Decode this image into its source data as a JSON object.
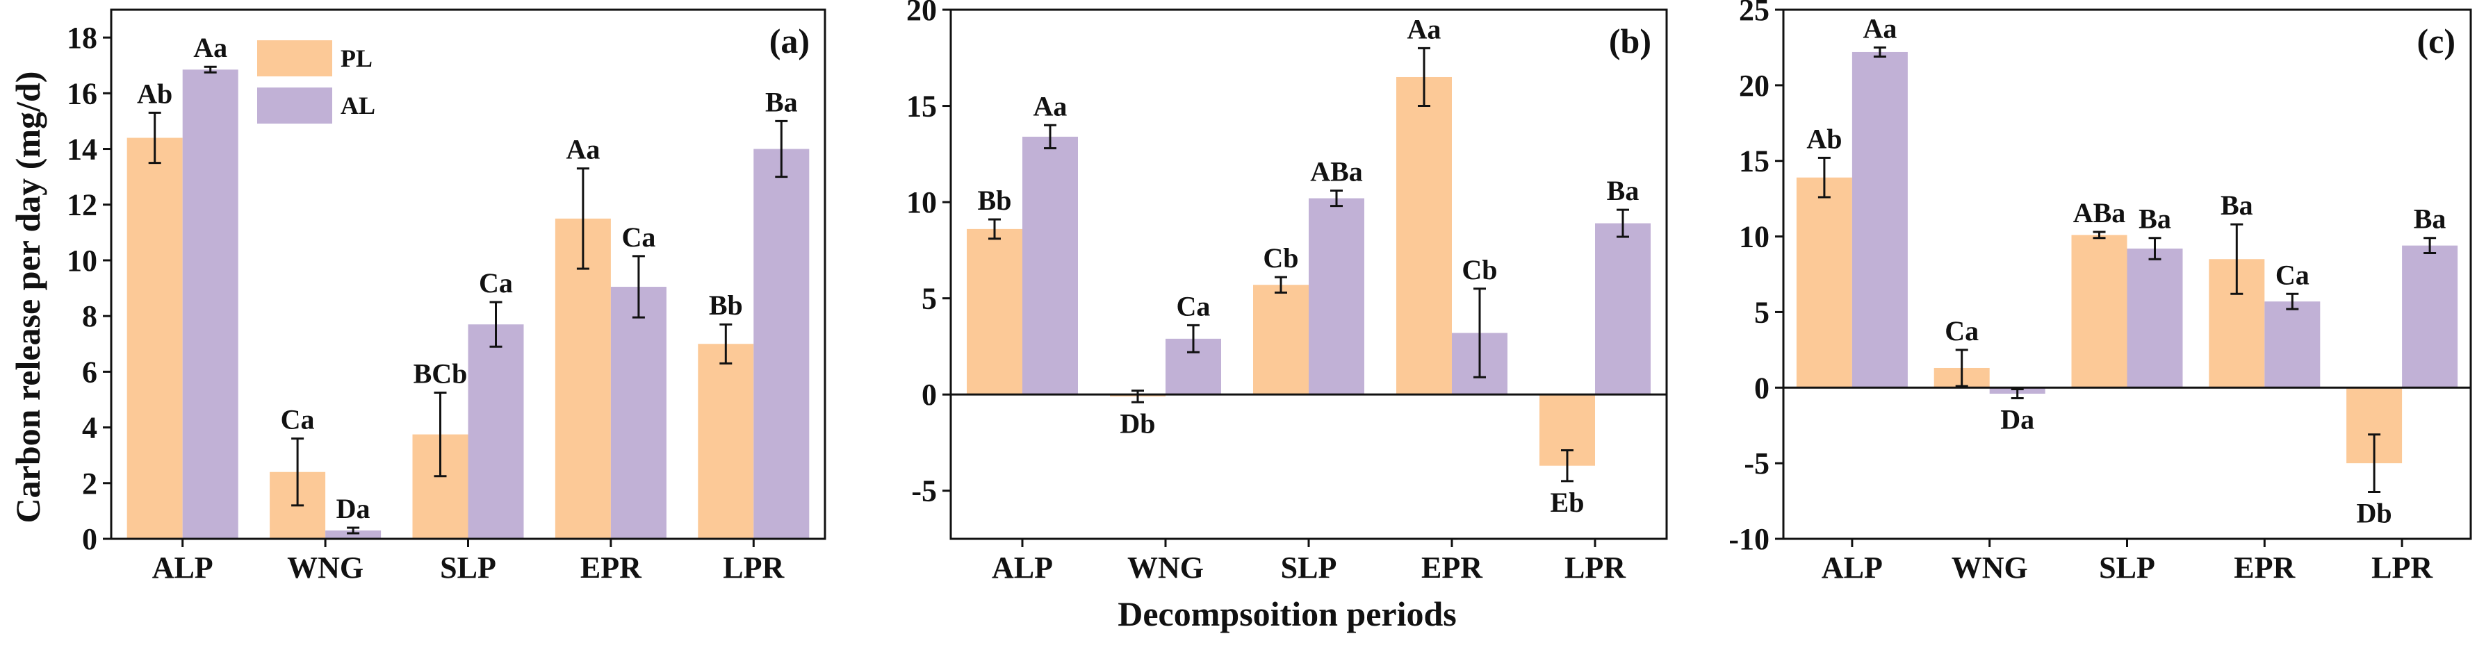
{
  "figure": {
    "ylabel": "Carbon release per day (mg/d)",
    "xlabel": "Decompsoition periods"
  },
  "legend": [
    {
      "name": "PL",
      "color": "#FCC997"
    },
    {
      "name": "AL",
      "color": "#C1B1D6"
    }
  ],
  "chart_data": [
    {
      "type": "bar",
      "panel_label": "(a)",
      "categories": [
        "ALP",
        "WNG",
        "SLP",
        "EPR",
        "LPR"
      ],
      "ylim": [
        0,
        19
      ],
      "yticks": [
        0,
        2,
        4,
        6,
        8,
        10,
        12,
        14,
        16,
        18
      ],
      "series": [
        {
          "name": "PL",
          "values": [
            14.4,
            2.4,
            3.75,
            11.5,
            7.0
          ],
          "errors": [
            0.9,
            1.2,
            1.5,
            1.8,
            0.7
          ],
          "labels": [
            "Ab",
            "Ca",
            "BCb",
            "Aa",
            "Bb"
          ]
        },
        {
          "name": "AL",
          "values": [
            16.85,
            0.3,
            7.7,
            9.05,
            14.0
          ],
          "errors": [
            0.1,
            0.1,
            0.8,
            1.1,
            1.0
          ],
          "labels": [
            "Aa",
            "Da",
            "Ca",
            "Ca",
            "Ba"
          ]
        }
      ]
    },
    {
      "type": "bar",
      "panel_label": "(b)",
      "categories": [
        "ALP",
        "WNG",
        "SLP",
        "EPR",
        "LPR"
      ],
      "ylim": [
        -7.5,
        20
      ],
      "yticks": [
        -5,
        0,
        5,
        10,
        15,
        20
      ],
      "series": [
        {
          "name": "PL",
          "values": [
            8.6,
            -0.1,
            5.7,
            16.5,
            -3.7
          ],
          "errors": [
            0.5,
            0.3,
            0.4,
            1.5,
            0.8
          ],
          "labels": [
            "Bb",
            "Db",
            "Cb",
            "Aa",
            "Eb"
          ]
        },
        {
          "name": "AL",
          "values": [
            13.4,
            2.9,
            10.2,
            3.2,
            8.9
          ],
          "errors": [
            0.6,
            0.7,
            0.4,
            2.3,
            0.7
          ],
          "labels": [
            "Aa",
            "Ca",
            "ABa",
            "Cb",
            "Ba"
          ]
        }
      ]
    },
    {
      "type": "bar",
      "panel_label": "(c)",
      "categories": [
        "ALP",
        "WNG",
        "SLP",
        "EPR",
        "LPR"
      ],
      "ylim": [
        -10,
        25
      ],
      "yticks": [
        -10,
        -5,
        0,
        5,
        10,
        15,
        20,
        25
      ],
      "series": [
        {
          "name": "PL",
          "values": [
            13.9,
            1.3,
            10.1,
            8.5,
            -5.0
          ],
          "errors": [
            1.3,
            1.2,
            0.2,
            2.3,
            1.9
          ],
          "labels": [
            "Ab",
            "Ca",
            "ABa",
            "Ba",
            "Db"
          ]
        },
        {
          "name": "AL",
          "values": [
            22.2,
            -0.4,
            9.2,
            5.7,
            9.4
          ],
          "errors": [
            0.3,
            0.3,
            0.7,
            0.5,
            0.5
          ],
          "labels": [
            "Aa",
            "Da",
            "Ba",
            "Ca",
            "Ba"
          ]
        }
      ]
    }
  ]
}
